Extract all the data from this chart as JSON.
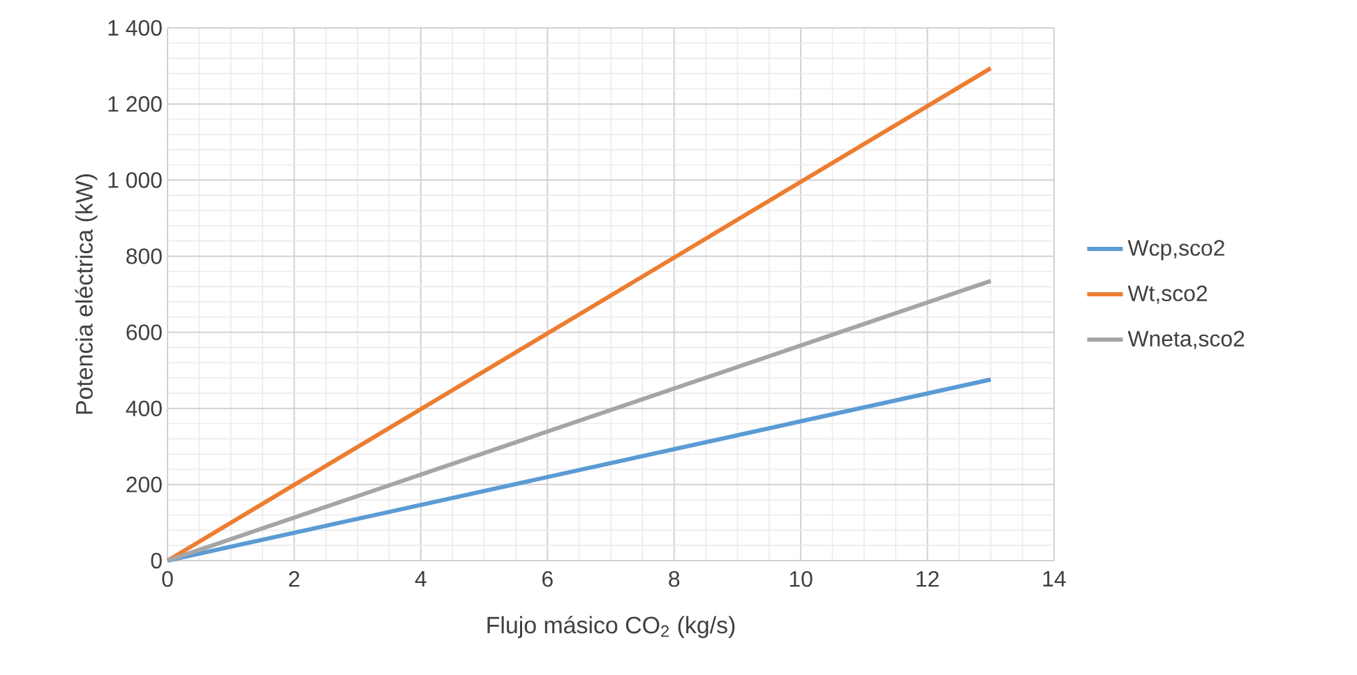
{
  "chart_data": {
    "type": "line",
    "xlabel": "Flujo másico CO$_{2}$ (kg/s)",
    "ylabel": "Potencia eléctrica (kW)",
    "xlim": [
      0,
      14
    ],
    "xticks": [
      0,
      2,
      4,
      6,
      8,
      10,
      12,
      14
    ],
    "ylim": [
      0,
      1400
    ],
    "yticks": [
      0,
      200,
      400,
      600,
      800,
      {
        "value": 1000,
        "label": "1 000"
      },
      {
        "value": 1200,
        "label": "1 200"
      },
      {
        "value": 1400,
        "label": "1 400"
      }
    ],
    "x": [
      0,
      13
    ],
    "grid": true,
    "legend": "right",
    "marker": "none",
    "line_style": "solid",
    "series": [
      {
        "name": "Wcp,sco2",
        "color": "#5b9bd5",
        "values": [
          0,
          476
        ]
      },
      {
        "name": "Wt,sco2",
        "color": "#ed7d31",
        "values": [
          0,
          1294
        ]
      },
      {
        "name": "Wneta,sco2",
        "color": "#a5a5a5",
        "values": [
          0,
          735
        ]
      }
    ]
  }
}
